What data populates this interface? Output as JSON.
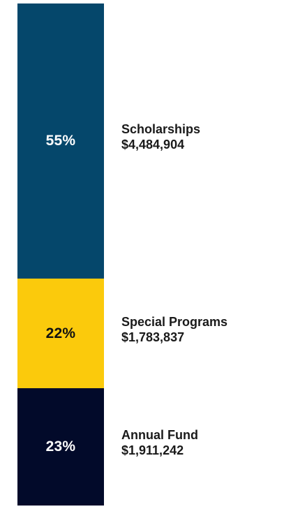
{
  "chart_data": {
    "type": "bar",
    "orientation": "stacked-vertical",
    "title": "",
    "categories": [
      "Scholarships",
      "Special Programs",
      "Annual Fund"
    ],
    "percent_labels": [
      "55%",
      "22%",
      "23%"
    ],
    "amount_labels": [
      "$4,484,904",
      "$1,783,837",
      "$1,911,242"
    ],
    "values": [
      4484904,
      1783837,
      1911242
    ],
    "percents": [
      55,
      22,
      23
    ],
    "colors": [
      "#05476b",
      "#fbca0c",
      "#020a2a"
    ],
    "text_colors": [
      "#ffffff",
      "#111111",
      "#ffffff"
    ],
    "legend": "right",
    "grid": false
  }
}
